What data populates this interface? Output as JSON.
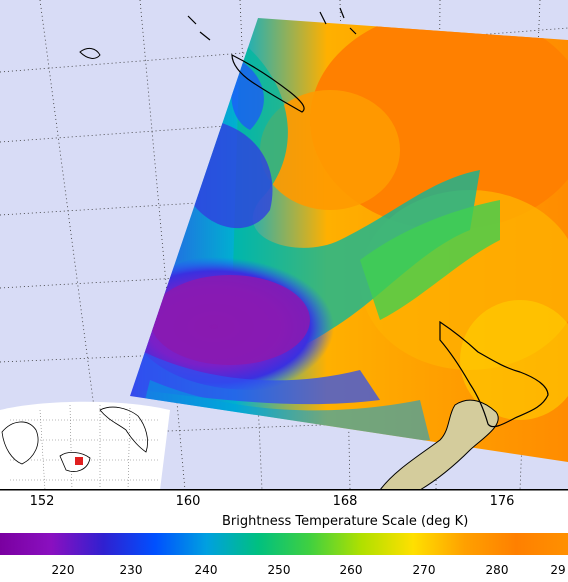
{
  "map": {
    "longitude_labels": [
      "152",
      "160",
      "168",
      "176"
    ],
    "scale_title": "Brightness Temperature Scale (deg K)",
    "scale_ticks": [
      "220",
      "230",
      "240",
      "250",
      "260",
      "270",
      "280",
      "29"
    ],
    "colors": {
      "ocean": "#d8dcf6",
      "land": "#d4cc9c",
      "storm_core": "#8a1ab0",
      "warm": "#ff8a00"
    },
    "scale_colors": [
      "#7a00a0",
      "#8a10c0",
      "#3020d0",
      "#0050ff",
      "#00a0e0",
      "#00c080",
      "#40d040",
      "#b0e000",
      "#ffe000",
      "#ffa000",
      "#ff8000",
      "#ff9000"
    ]
  }
}
